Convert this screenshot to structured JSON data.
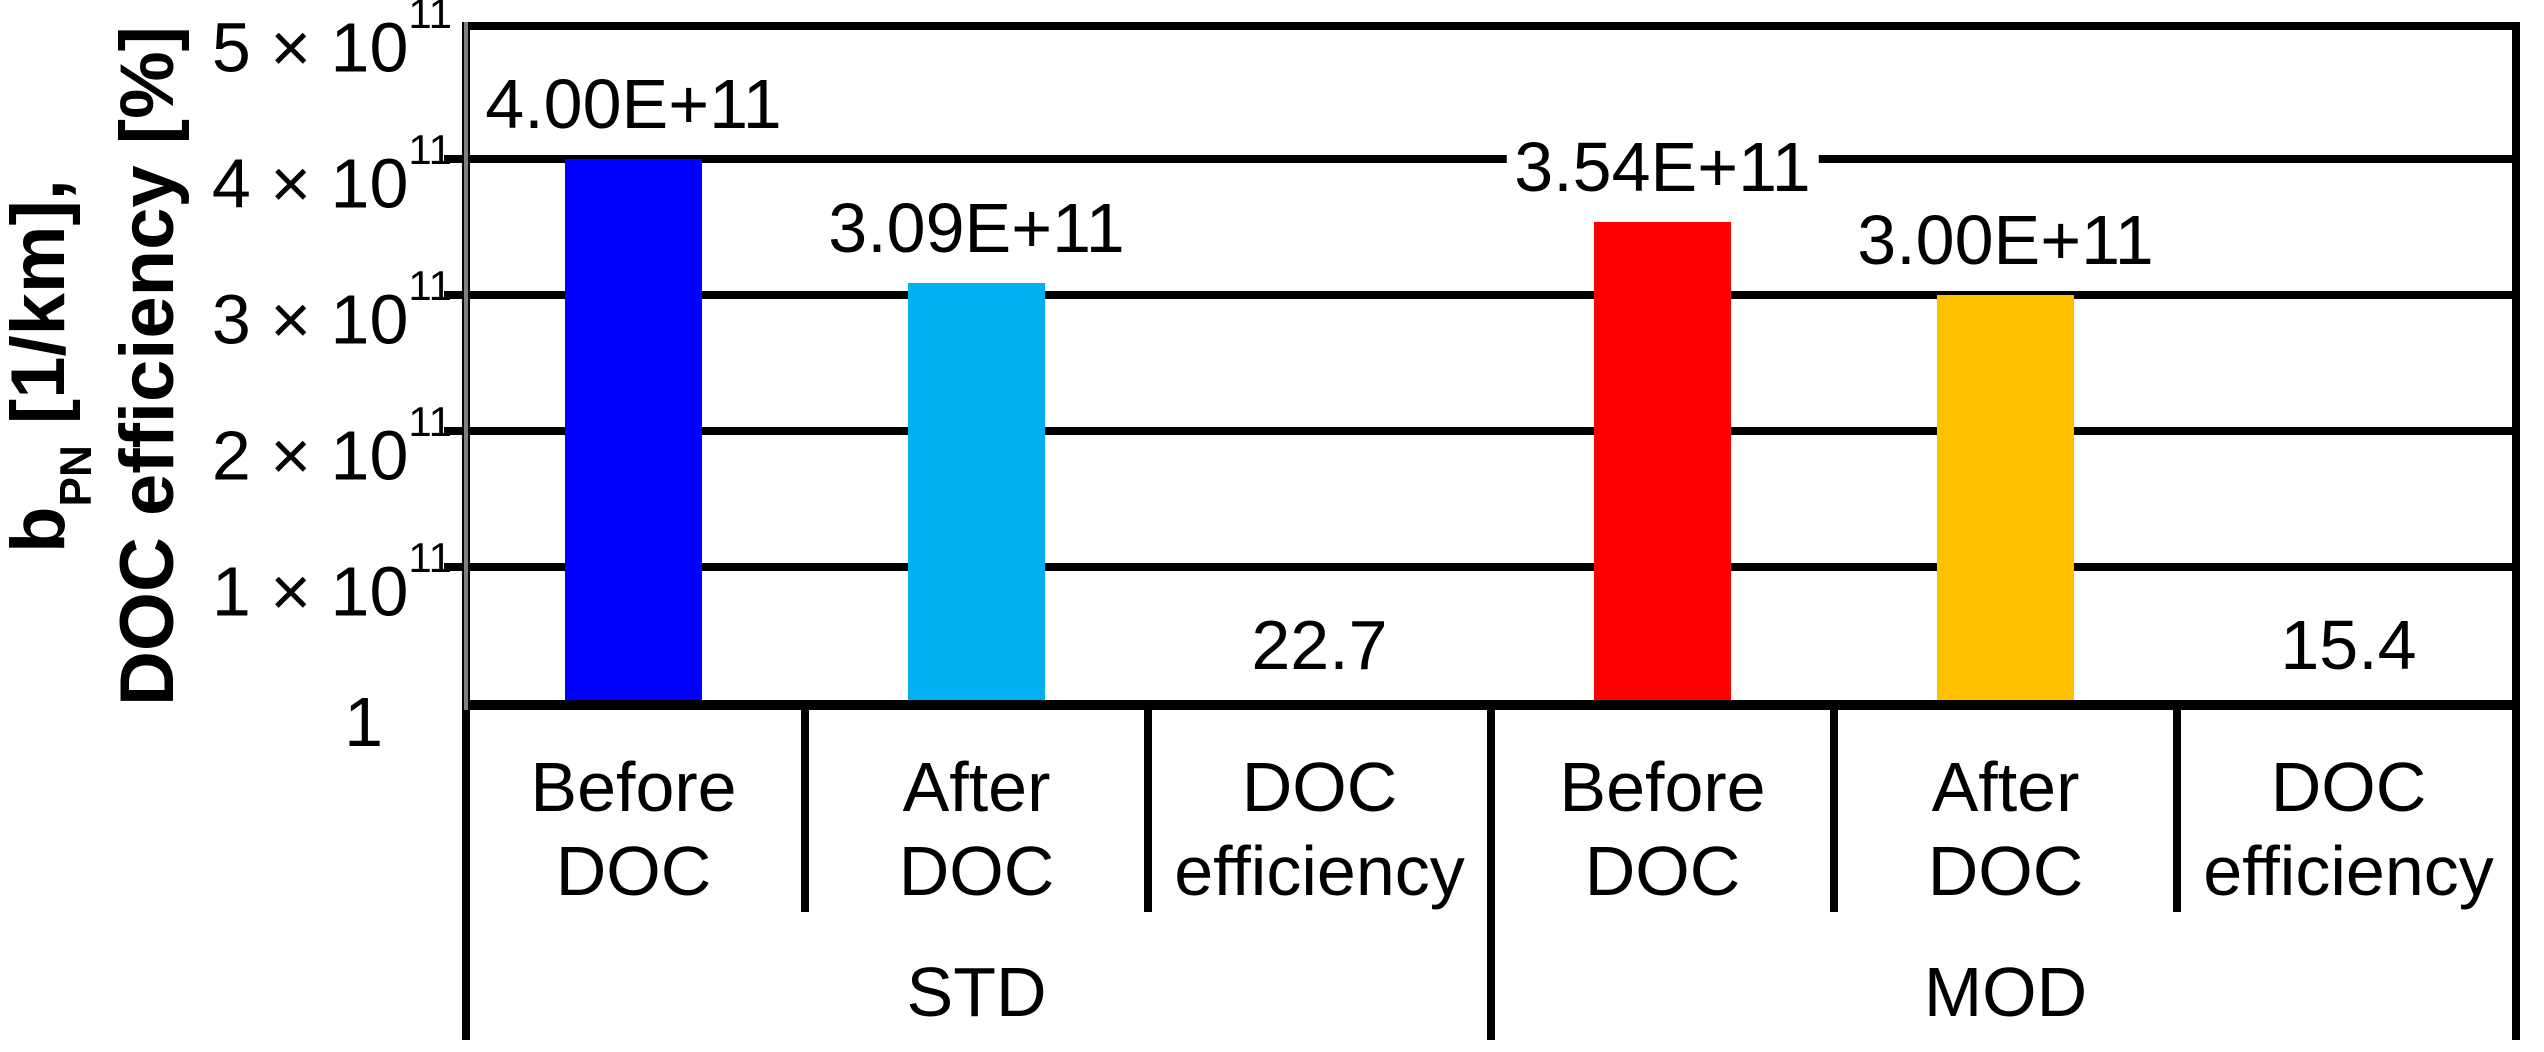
{
  "chart_data": {
    "type": "bar",
    "background_color": "#FFFFFF",
    "frame_color": "#000000",
    "axis_gray_color": "#808080",
    "gridlines": "on",
    "legend": "none",
    "y_title": {
      "line1_pre": "b",
      "line1_sub": "PN",
      "line1_post": " [1/km],",
      "line2": "DOC efficiency [%]"
    },
    "y_axis": {
      "min_label": "1",
      "max": 500000000000.0,
      "major_unit": 100000000000.0,
      "ticks": [
        {
          "base": "5 × 10",
          "sup": "11",
          "value": 500000000000.0
        },
        {
          "base": "4 × 10",
          "sup": "11",
          "value": 400000000000.0
        },
        {
          "base": "3 × 10",
          "sup": "11",
          "value": 300000000000.0
        },
        {
          "base": "2 × 10",
          "sup": "11",
          "value": 200000000000.0
        },
        {
          "base": "1 × 10",
          "sup": "11",
          "value": 100000000000.0
        },
        {
          "base": "1",
          "sup": "",
          "value": 0
        }
      ]
    },
    "groups": [
      {
        "label": "STD",
        "categories": [
          "Before DOC",
          "After DOC",
          "DOC efficiency"
        ]
      },
      {
        "label": "MOD",
        "categories": [
          "Before DOC",
          "After DOC",
          "DOC efficiency"
        ]
      }
    ],
    "bars": [
      {
        "group": "STD",
        "category": "Before DOC",
        "value": 400000000000.0,
        "label": "4.00E+11",
        "color": "#0000FF"
      },
      {
        "group": "STD",
        "category": "After DOC",
        "value": 309000000000.0,
        "label": "3.09E+11",
        "color": "#00B0F0"
      },
      {
        "group": "STD",
        "category": "DOC efficiency",
        "value": 22.7,
        "label": "22.7",
        "color": null
      },
      {
        "group": "MOD",
        "category": "Before DOC",
        "value": 354000000000.0,
        "label": "3.54E+11",
        "color": "#FF0000"
      },
      {
        "group": "MOD",
        "category": "After DOC",
        "value": 300000000000.0,
        "label": "3.00E+11",
        "color": "#FFC000"
      },
      {
        "group": "MOD",
        "category": "DOC efficiency",
        "value": 15.4,
        "label": "15.4",
        "color": null
      }
    ]
  }
}
